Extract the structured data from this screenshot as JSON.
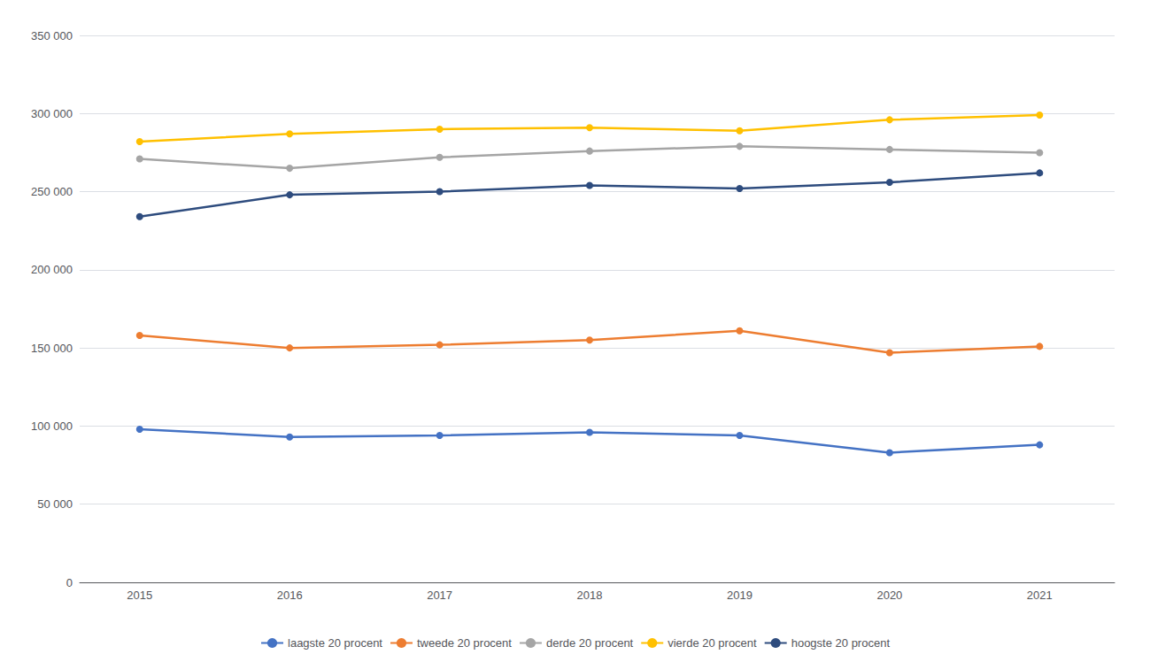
{
  "chart_data": {
    "type": "line",
    "x": [
      2015,
      2016,
      2017,
      2018,
      2019,
      2020,
      2021
    ],
    "series": [
      {
        "name": "laagste 20 procent",
        "color": "#4472C4",
        "marker": "circle",
        "values": [
          98000,
          93000,
          94000,
          96000,
          94000,
          83000,
          88000
        ]
      },
      {
        "name": "tweede 20 procent",
        "color": "#ED7D31",
        "marker": "circle",
        "values": [
          158000,
          150000,
          152000,
          155000,
          161000,
          147000,
          151000
        ]
      },
      {
        "name": "derde 20 procent",
        "color": "#A5A5A5",
        "marker": "circle",
        "values": [
          271000,
          265000,
          272000,
          276000,
          279000,
          277000,
          275000
        ]
      },
      {
        "name": "vierde 20 procent",
        "color": "#FFC000",
        "marker": "circle",
        "values": [
          282000,
          287000,
          290000,
          291000,
          289000,
          296000,
          299000
        ]
      },
      {
        "name": "hoogste 20 procent",
        "color": "#2E4C7E",
        "marker": "circle",
        "values": [
          234000,
          248000,
          250000,
          254000,
          252000,
          256000,
          262000
        ]
      }
    ],
    "xlim": [
      2014.6,
      2021.5
    ],
    "xticks": [
      2015,
      2016,
      2017,
      2018,
      2019,
      2020,
      2021
    ],
    "ylim": [
      0,
      350000
    ],
    "yticks": [
      0,
      {
        "value": 50000,
        "label": "50 000"
      },
      {
        "value": 100000,
        "label": "100 000"
      },
      {
        "value": 150000,
        "label": "150 000"
      },
      {
        "value": 200000,
        "label": "200 000"
      },
      {
        "value": 250000,
        "label": "250 000"
      },
      {
        "value": 300000,
        "label": "300 000"
      },
      {
        "value": 350000,
        "label": "350 000"
      }
    ],
    "grid": true,
    "legend": "bottom"
  }
}
